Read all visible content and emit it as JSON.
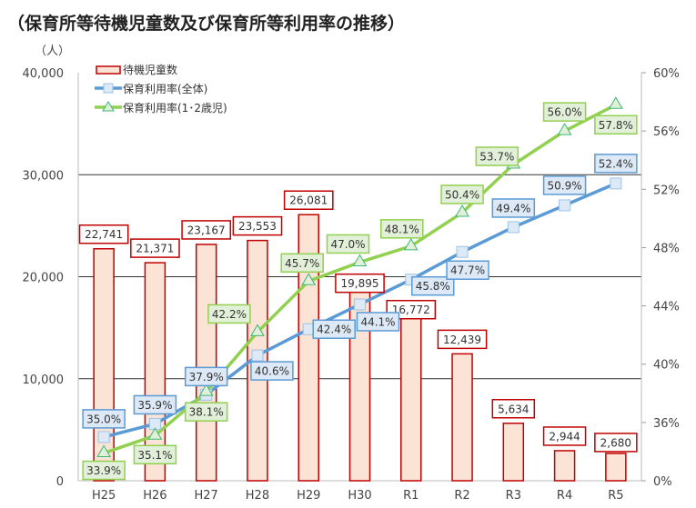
{
  "chart_data": {
    "type": "bar+line",
    "title": "（保育所等待機児童数及び保育所等利用率の推移）",
    "ylabel_left": "（人）",
    "categories": [
      "H25",
      "H26",
      "H27",
      "H28",
      "H29",
      "H30",
      "R1",
      "R2",
      "R3",
      "R4",
      "R5"
    ],
    "left_axis": {
      "min": 0,
      "max": 40000,
      "ticks": [
        "0",
        "10,000",
        "20,000",
        "30,000",
        "40,000"
      ],
      "tick_values": [
        0,
        10000,
        20000,
        30000,
        40000
      ]
    },
    "right_axis": {
      "min": 32,
      "max": 60,
      "ticks": [
        "0%",
        "36%",
        "40%",
        "44%",
        "48%",
        "52%",
        "56%",
        "60%"
      ],
      "tick_values": [
        32,
        36,
        40,
        44,
        48,
        52,
        56,
        60
      ],
      "note": "axis break at bottom labeled 0%"
    },
    "grid": "horizontal at 10,000 / 20,000 / 30,000",
    "legend_position": "top-left",
    "series": [
      {
        "name": "待機児童数",
        "type": "bar",
        "axis": "left",
        "color": "#c00000",
        "fill": "#fbe3d6",
        "values": [
          22741,
          21371,
          23167,
          23553,
          26081,
          19895,
          16772,
          12439,
          5634,
          2944,
          2680
        ],
        "labels": [
          "22,741",
          "21,371",
          "23,167",
          "23,553",
          "26,081",
          "19,895",
          "16,772",
          "12,439",
          "5,634",
          "2,944",
          "2,680"
        ]
      },
      {
        "name": "保育利用率(全体)",
        "type": "line",
        "axis": "right",
        "color": "#5b9bd5",
        "marker": "square",
        "values": [
          35.0,
          35.9,
          37.9,
          40.6,
          42.4,
          44.1,
          45.8,
          47.7,
          49.4,
          50.9,
          52.4
        ],
        "labels": [
          "35.0%",
          "35.9%",
          "37.9%",
          "40.6%",
          "42.4%",
          "44.1%",
          "45.8%",
          "47.7%",
          "49.4%",
          "50.9%",
          "52.4%"
        ]
      },
      {
        "name": "保育利用率(1･2歳児)",
        "type": "line",
        "axis": "right",
        "color": "#92d050",
        "marker": "triangle",
        "values": [
          33.9,
          35.1,
          38.1,
          42.2,
          45.7,
          47.0,
          48.1,
          50.4,
          53.7,
          56.0,
          57.8
        ],
        "labels": [
          "33.9%",
          "35.1%",
          "38.1%",
          "42.2%",
          "45.7%",
          "47.0%",
          "48.1%",
          "50.4%",
          "53.7%",
          "56.0%",
          "57.8%"
        ]
      }
    ]
  }
}
